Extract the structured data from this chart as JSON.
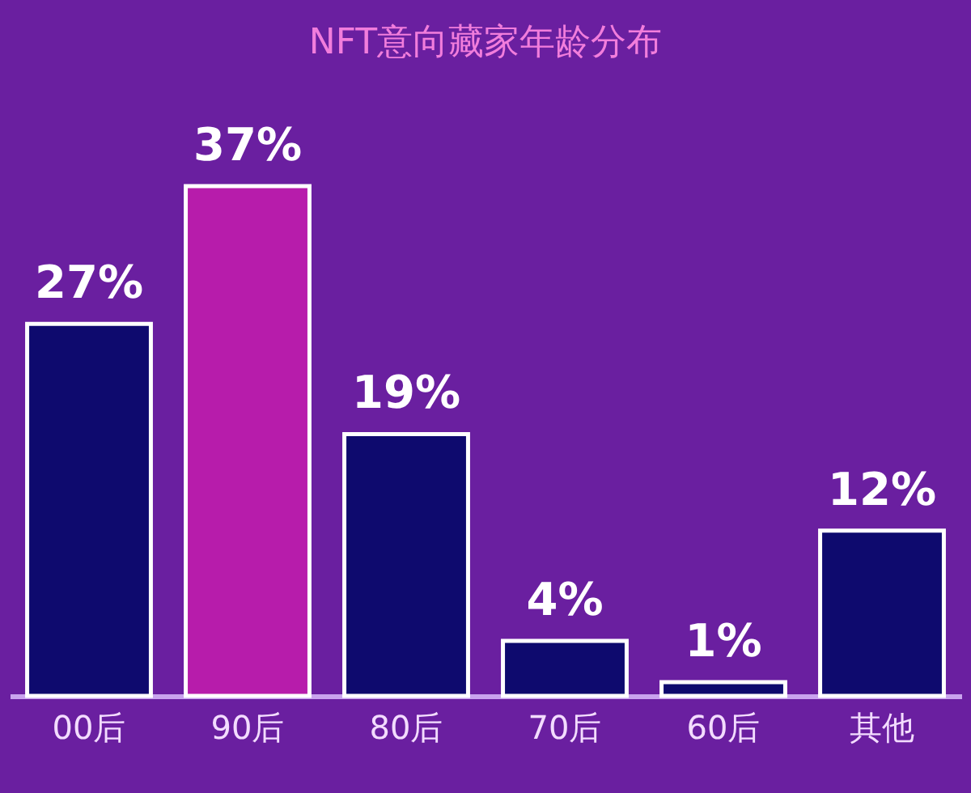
{
  "chart_data": {
    "type": "bar",
    "title": "NFT意向藏家年龄分布",
    "categories": [
      "00后",
      "90后",
      "80后",
      "70后",
      "60后",
      "其他"
    ],
    "values": [
      27,
      37,
      19,
      4,
      1,
      12
    ],
    "colors": [
      "#0e0a6e",
      "#b71cab",
      "#0e0a6e",
      "#0e0a6e",
      "#0e0a6e",
      "#0e0a6e"
    ],
    "value_labels": [
      "27%",
      "37%",
      "19%",
      "4%",
      "1%",
      "12%"
    ],
    "grid": false,
    "legend": false
  }
}
